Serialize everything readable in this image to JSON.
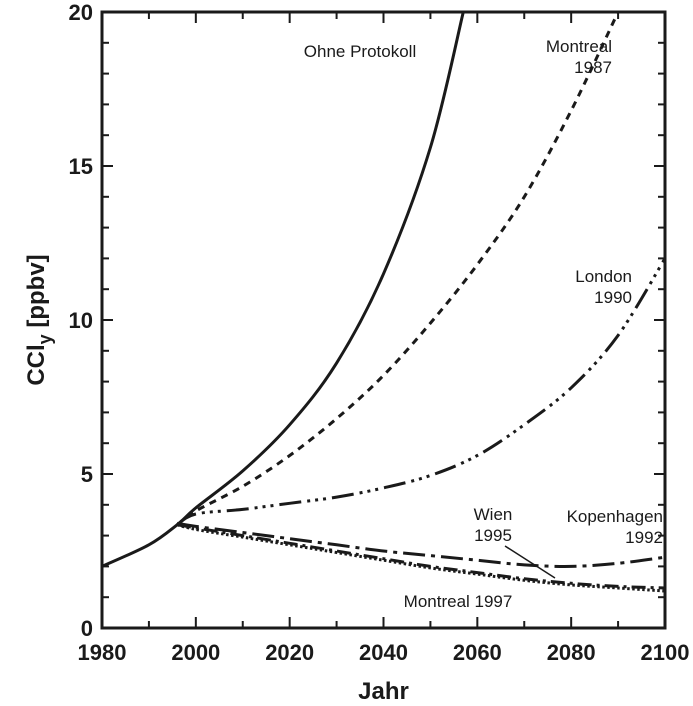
{
  "chart_data": {
    "type": "line",
    "xlabel": "Jahr",
    "ylabel_main": "CCl",
    "ylabel_sub": "y",
    "ylabel_unit": " [ppbv]",
    "xlim": [
      1980,
      2100
    ],
    "ylim": [
      0,
      20
    ],
    "xticks": [
      1980,
      2000,
      2020,
      2040,
      2060,
      2080,
      2100
    ],
    "yticks": [
      0,
      5,
      10,
      15,
      20
    ],
    "grid": false,
    "series": [
      {
        "id": "ohne",
        "x": [
          1980,
          1990,
          1996,
          2000,
          2010,
          2020,
          2030,
          2040,
          2050,
          2057
        ],
        "y": [
          2.0,
          2.7,
          3.35,
          3.9,
          5.1,
          6.6,
          8.6,
          11.5,
          15.6,
          20.0
        ]
      },
      {
        "id": "montreal1987",
        "x": [
          1996,
          2000,
          2010,
          2020,
          2030,
          2040,
          2050,
          2060,
          2070,
          2080,
          2090
        ],
        "y": [
          3.35,
          3.8,
          4.6,
          5.6,
          6.8,
          8.2,
          9.9,
          11.8,
          14.0,
          16.8,
          20.0
        ]
      },
      {
        "id": "london1990",
        "x": [
          1996,
          2000,
          2010,
          2020,
          2030,
          2040,
          2050,
          2060,
          2070,
          2080,
          2090,
          2100
        ],
        "y": [
          3.35,
          3.7,
          3.85,
          4.05,
          4.25,
          4.55,
          4.95,
          5.6,
          6.6,
          7.8,
          9.5,
          12.0
        ]
      },
      {
        "id": "kopenhagen1992",
        "x": [
          1996,
          2000,
          2010,
          2020,
          2030,
          2040,
          2050,
          2060,
          2070,
          2080,
          2090,
          2100
        ],
        "y": [
          3.4,
          3.3,
          3.1,
          2.9,
          2.7,
          2.5,
          2.35,
          2.2,
          2.05,
          2.0,
          2.1,
          2.3
        ]
      },
      {
        "id": "wien1995",
        "x": [
          1996,
          2000,
          2010,
          2020,
          2030,
          2040,
          2050,
          2060,
          2070,
          2080,
          2090,
          2100
        ],
        "y": [
          3.35,
          3.25,
          3.0,
          2.75,
          2.5,
          2.25,
          2.0,
          1.8,
          1.6,
          1.45,
          1.35,
          1.3
        ]
      },
      {
        "id": "montreal1997",
        "x": [
          1996,
          2000,
          2010,
          2020,
          2030,
          2040,
          2050,
          2060,
          2070,
          2080,
          2090,
          2100
        ],
        "y": [
          3.35,
          3.2,
          2.95,
          2.7,
          2.45,
          2.2,
          1.95,
          1.75,
          1.55,
          1.4,
          1.3,
          1.2
        ]
      }
    ],
    "annotations": [
      {
        "id": "ohne",
        "lines": [
          "Ohne Protokoll"
        ]
      },
      {
        "id": "montreal1987",
        "lines": [
          "Montreal",
          "1987"
        ]
      },
      {
        "id": "london1990",
        "lines": [
          "London",
          "1990"
        ]
      },
      {
        "id": "wien1995",
        "lines": [
          "Wien",
          "1995"
        ]
      },
      {
        "id": "kopenhagen1992",
        "lines": [
          "Kopenhagen",
          "1992"
        ]
      },
      {
        "id": "montreal1997",
        "lines": [
          "Montreal 1997"
        ]
      }
    ]
  }
}
